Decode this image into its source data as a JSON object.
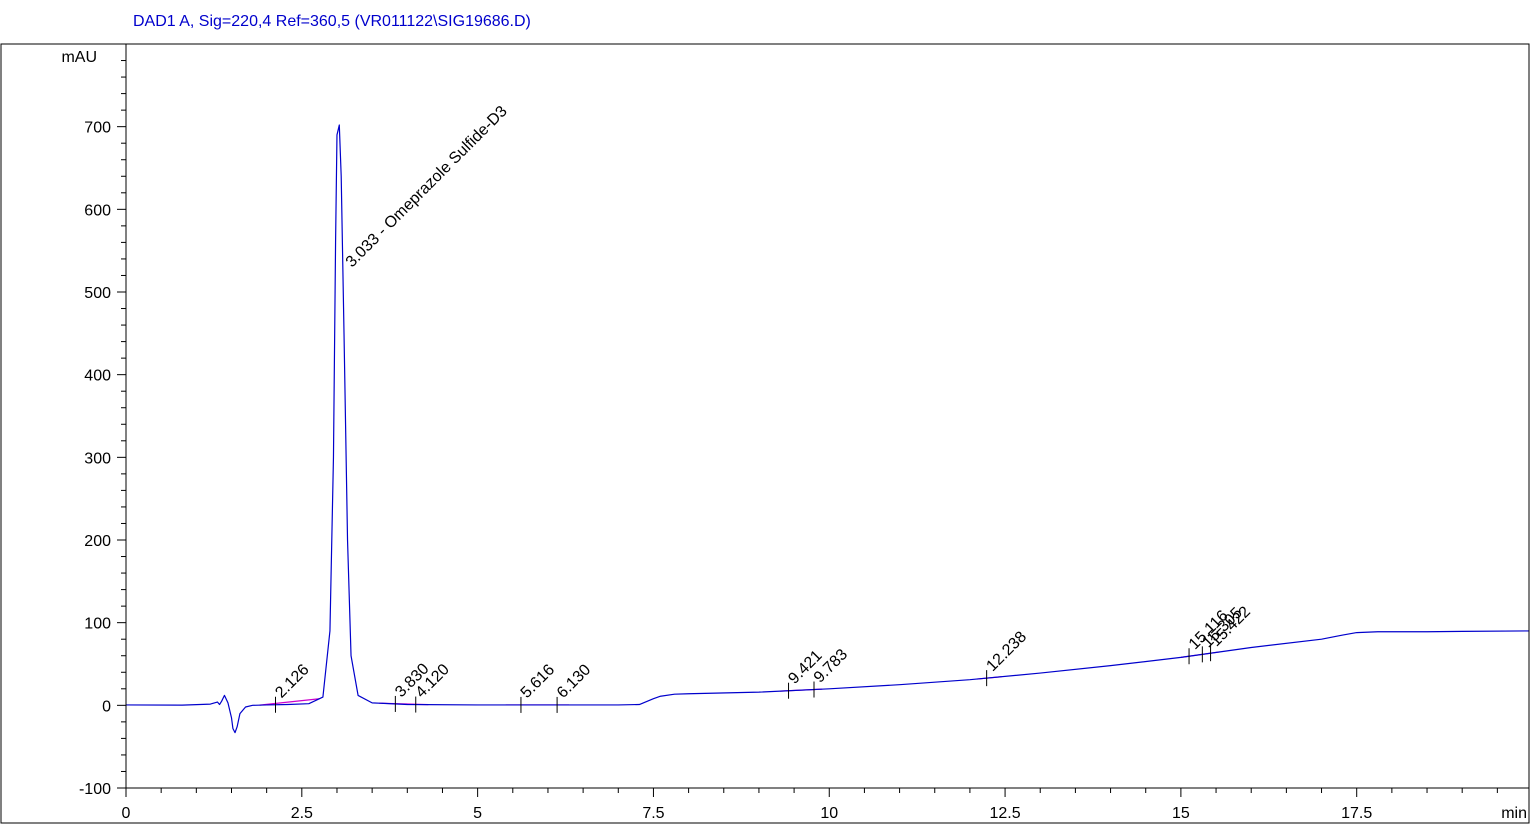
{
  "chart_data": {
    "type": "line",
    "title": "DAD1 A, Sig=220,4 Ref=360,5 (VR011122\\SIG19686.D)",
    "ylabel": "mAU",
    "xlabel": "min",
    "xlim": [
      0,
      19.95
    ],
    "ylim": [
      -100,
      800
    ],
    "x_ticks": [
      0,
      2.5,
      5,
      7.5,
      10,
      12.5,
      15,
      17.5
    ],
    "x_tick_labels": [
      "0",
      "2.5",
      "5",
      "7.5",
      "10",
      "12.5",
      "15",
      "17.5"
    ],
    "y_ticks": [
      -100,
      0,
      100,
      200,
      300,
      400,
      500,
      600,
      700
    ],
    "y_tick_labels": [
      "-100",
      "0",
      "100",
      "200",
      "300",
      "400",
      "500",
      "600",
      "700"
    ],
    "grid": false,
    "series": [
      {
        "color": "#0000cc",
        "x": [
          0,
          0.8,
          1.2,
          1.3,
          1.33,
          1.36,
          1.4,
          1.45,
          1.5,
          1.52,
          1.55,
          1.58,
          1.62,
          1.7,
          1.8,
          2.0,
          2.3,
          2.6,
          2.8,
          2.9,
          2.95,
          2.98,
          3.0,
          3.033,
          3.06,
          3.1,
          3.15,
          3.2,
          3.3,
          3.5,
          4.0,
          5.0,
          6.0,
          7.0,
          7.3,
          7.5,
          7.6,
          7.8,
          8.0,
          9.0,
          10.0,
          11.0,
          12.0,
          13.0,
          14.0,
          15.0,
          16.0,
          17.0,
          17.3,
          17.5,
          17.8,
          18.5,
          19.0,
          19.95
        ],
        "y": [
          0.5,
          0.3,
          1.5,
          4,
          1,
          5,
          12,
          3,
          -15,
          -28,
          -33,
          -26,
          -10,
          -2,
          0,
          0.5,
          1,
          2,
          10,
          90,
          300,
          560,
          690,
          702,
          640,
          450,
          200,
          60,
          12,
          3,
          1,
          0.5,
          0.5,
          0.5,
          1,
          8,
          11,
          13.5,
          14,
          16,
          20,
          25,
          31,
          39,
          48,
          58,
          70,
          80,
          85,
          88,
          89,
          89,
          89.5,
          90
        ]
      }
    ],
    "baseline_segments": [
      [
        1.9,
        2.75
      ],
      [
        3.6,
        4.3
      ],
      [
        5.4,
        6.3
      ],
      [
        9.3,
        9.9
      ],
      [
        12.1,
        12.45
      ],
      [
        15.0,
        15.55
      ]
    ],
    "peaks": [
      {
        "rt": 2.126,
        "label": "2.126"
      },
      {
        "rt": 3.033,
        "label": "3.033 - Omeprazole Sulfide-D3"
      },
      {
        "rt": 3.83,
        "label": "3.830"
      },
      {
        "rt": 4.12,
        "label": "4.120"
      },
      {
        "rt": 5.616,
        "label": "5.616"
      },
      {
        "rt": 6.13,
        "label": "6.130"
      },
      {
        "rt": 9.421,
        "label": "9.421"
      },
      {
        "rt": 9.783,
        "label": "9.783"
      },
      {
        "rt": 12.238,
        "label": "12.238"
      },
      {
        "rt": 15.116,
        "label": "15.116"
      },
      {
        "rt": 15.305,
        "label": "15.305"
      },
      {
        "rt": 15.422,
        "label": "15.422"
      }
    ],
    "colors": {
      "signal": "#0000cc",
      "baseline": "#cc00cc",
      "axis": "#000000",
      "title": "#0000cc"
    }
  }
}
